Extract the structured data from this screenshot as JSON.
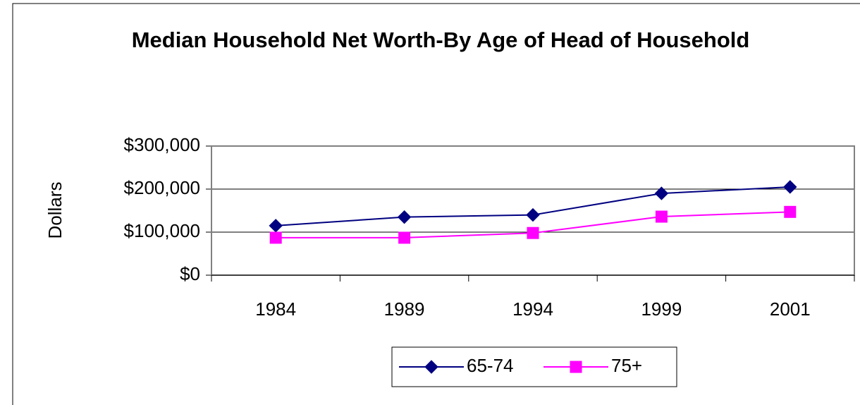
{
  "chart_data": {
    "type": "line",
    "title": "Median Household Net Worth-By Age of Head of Household",
    "y_label": "Dollars",
    "categories": [
      "1984",
      "1989",
      "1994",
      "1999",
      "2001"
    ],
    "series": [
      {
        "name": "65-74",
        "color": "#000080",
        "marker": "diamond",
        "values": [
          115000,
          135000,
          140000,
          190000,
          205000
        ]
      },
      {
        "name": "75+",
        "color": "#ff00ff",
        "marker": "square",
        "values": [
          87000,
          87000,
          98000,
          136000,
          147000
        ]
      }
    ],
    "ylim": [
      0,
      300000
    ],
    "yticks": [
      {
        "value": 0,
        "label": "$0"
      },
      {
        "value": 100000,
        "label": "$100,000"
      },
      {
        "value": 200000,
        "label": "$200,000"
      },
      {
        "value": 300000,
        "label": "$300,000"
      }
    ],
    "grid": true,
    "legend": "bottom"
  }
}
